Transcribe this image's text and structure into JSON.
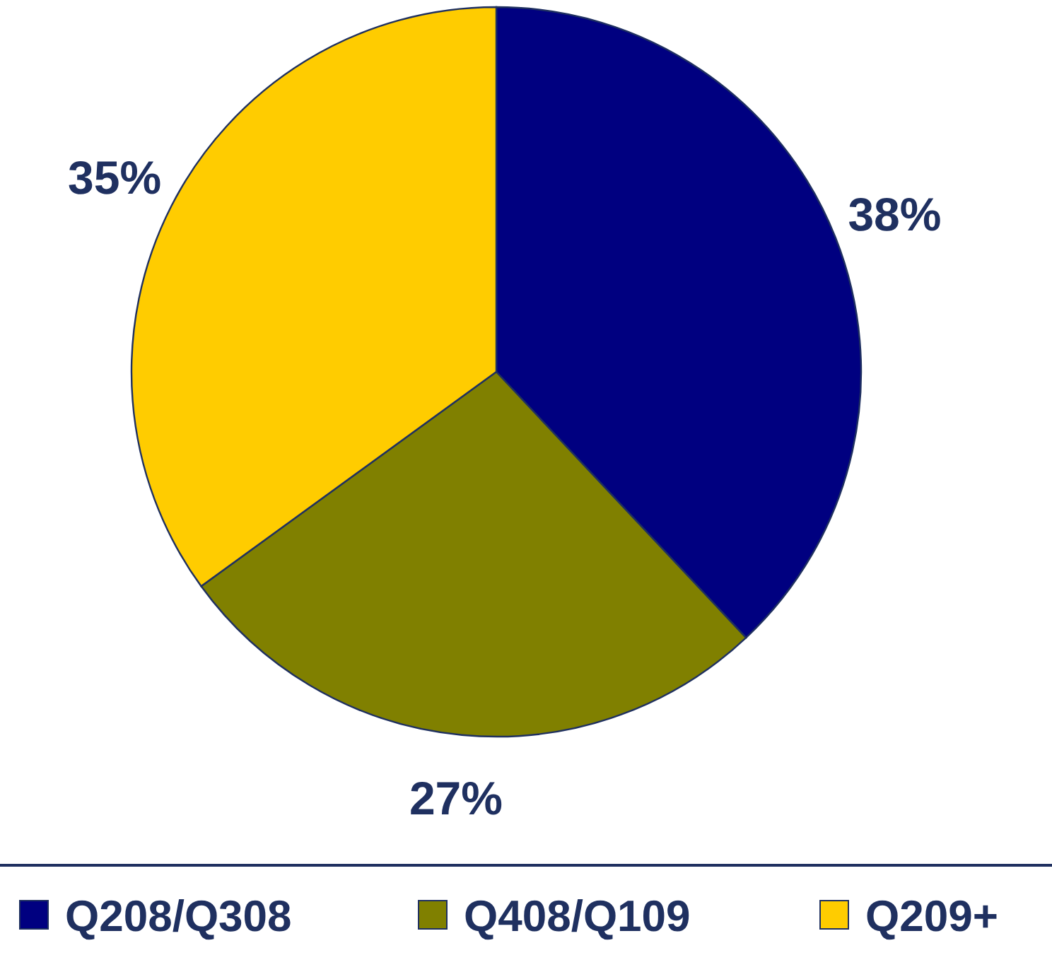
{
  "chart_data": {
    "type": "pie",
    "categories": [
      "Q208/Q308",
      "Q408/Q109",
      "Q209+"
    ],
    "values": [
      38,
      27,
      35
    ],
    "colors": [
      "#000080",
      "#808000",
      "#ffcc00"
    ],
    "value_labels": [
      "38%",
      "27%",
      "35%"
    ],
    "legend": "bottom"
  }
}
